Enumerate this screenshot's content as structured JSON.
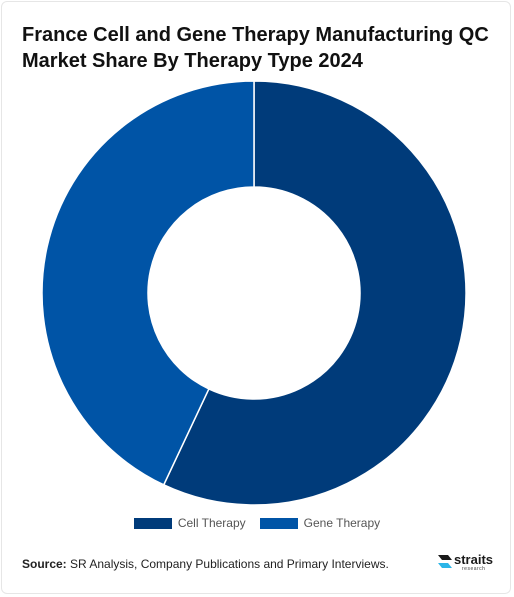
{
  "title": "France Cell and Gene Therapy Manufacturing QC Market Share By Therapy Type 2024",
  "chart_data": {
    "type": "pie",
    "donut": true,
    "title": "France Cell and Gene Therapy Manufacturing QC Market Share By Therapy Type 2024",
    "categories": [
      "Cell Therapy",
      "Gene Therapy"
    ],
    "values": [
      57,
      43
    ],
    "colors": [
      "#003b7a",
      "#0054a6"
    ],
    "legend_position": "bottom"
  },
  "legend": [
    {
      "label": "Cell Therapy",
      "color": "#003b7a"
    },
    {
      "label": "Gene Therapy",
      "color": "#0054a6"
    }
  ],
  "source": {
    "label": "Source:",
    "text": " SR Analysis, Company Publications and Primary Interviews."
  },
  "logo": {
    "name": "straits",
    "sub": "research"
  }
}
